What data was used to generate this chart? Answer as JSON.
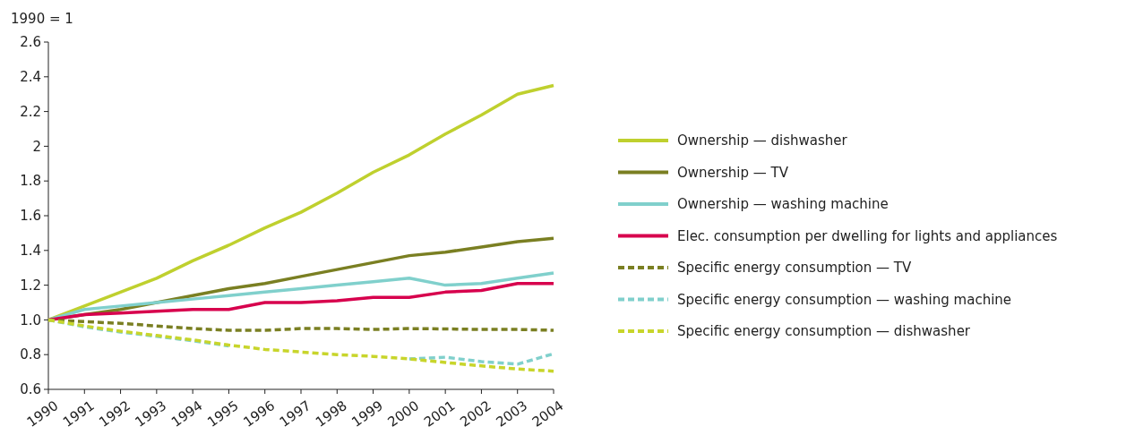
{
  "chart_data": {
    "type": "line",
    "ylabel": "1990 = 1",
    "categories": [
      "1990",
      "1991",
      "1992",
      "1993",
      "1994",
      "1995",
      "1996",
      "1997",
      "1998",
      "1999",
      "2000",
      "2001",
      "2002",
      "2003",
      "2004"
    ],
    "ylim": [
      0.6,
      2.6
    ],
    "yticks": [
      0.6,
      0.8,
      {
        "value": 1,
        "label": "1.0"
      },
      1.2,
      1.4,
      1.6,
      1.8,
      2,
      2.2,
      2.4,
      2.6
    ],
    "grid": false,
    "legend": "right",
    "marker": "none",
    "series": [
      {
        "name": "Ownership — dishwasher",
        "color": "#bfd02e",
        "line_style": "solid",
        "values": [
          1.0,
          1.08,
          1.16,
          1.24,
          1.34,
          1.43,
          1.53,
          1.62,
          1.73,
          1.85,
          1.95,
          2.07,
          2.18,
          2.3,
          2.35
        ]
      },
      {
        "name": "Ownership — TV",
        "color": "#7a7f22",
        "line_style": "solid",
        "values": [
          1.0,
          1.03,
          1.06,
          1.1,
          1.14,
          1.18,
          1.21,
          1.25,
          1.29,
          1.33,
          1.37,
          1.39,
          1.42,
          1.45,
          1.47
        ]
      },
      {
        "name": "Ownership — washing machine",
        "color": "#80d0cc",
        "line_style": "solid",
        "values": [
          1.0,
          1.06,
          1.08,
          1.1,
          1.12,
          1.14,
          1.16,
          1.18,
          1.2,
          1.22,
          1.24,
          1.2,
          1.21,
          1.24,
          1.27
        ]
      },
      {
        "name": "Elec. consumption per dwelling for lights and appliances",
        "color": "#d7004d",
        "line_style": "solid",
        "values": [
          1.0,
          1.03,
          1.04,
          1.05,
          1.06,
          1.06,
          1.1,
          1.1,
          1.11,
          1.13,
          1.13,
          1.16,
          1.17,
          1.21,
          1.21
        ]
      },
      {
        "name": "Specific energy consumption — TV",
        "color": "#7a7f22",
        "line_style": "dashed",
        "values": [
          1.0,
          0.99,
          0.98,
          0.965,
          0.95,
          0.94,
          0.94,
          0.95,
          0.95,
          0.945,
          0.95,
          0.948,
          0.945,
          0.945,
          0.94
        ]
      },
      {
        "name": "Specific energy consumption — washing machine",
        "color": "#80d0cc",
        "line_style": "dashed",
        "values": [
          1.0,
          0.96,
          0.93,
          0.905,
          0.88,
          0.85,
          null,
          null,
          null,
          null,
          0.775,
          0.785,
          0.76,
          0.745,
          0.805
        ]
      },
      {
        "name": "Specific energy consumption — dishwasher",
        "color": "#c8d52b",
        "line_style": "dashed",
        "values": [
          1.0,
          0.965,
          0.935,
          0.91,
          0.885,
          0.855,
          0.83,
          0.815,
          0.8,
          0.79,
          0.775,
          0.755,
          0.735,
          0.717,
          0.705
        ]
      }
    ]
  }
}
